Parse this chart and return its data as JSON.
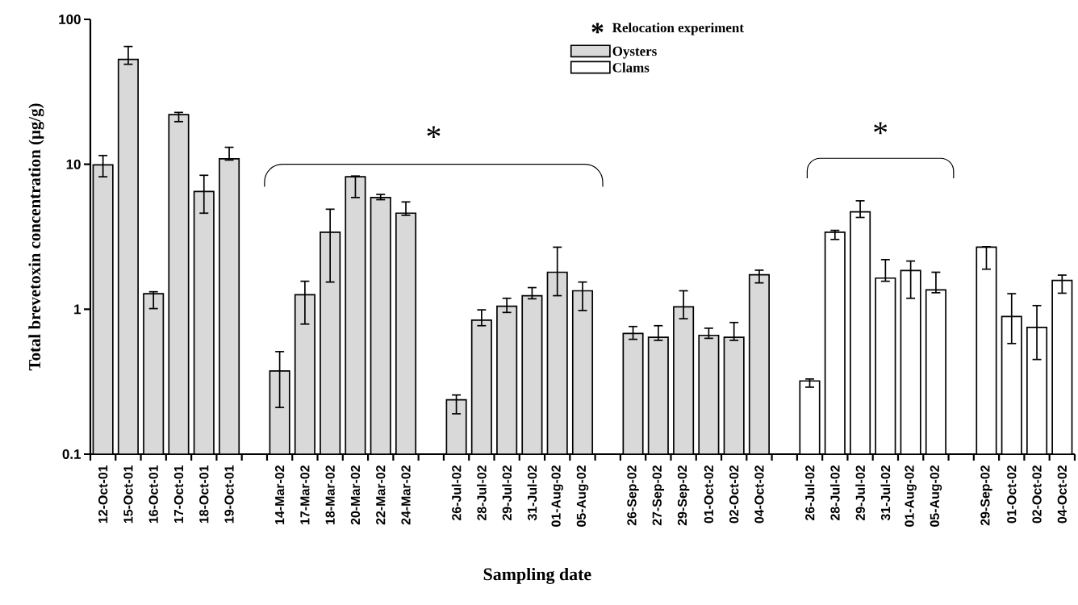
{
  "chart_data": {
    "type": "bar",
    "xlabel": "Sampling date",
    "ylabel": "Total brevetoxin concentration (μg/g)",
    "categories": [
      "12-Oct-01",
      "15-Oct-01",
      "16-Oct-01",
      "17-Oct-01",
      "18-Oct-01",
      "19-Oct-01",
      null,
      "14-Mar-02",
      "17-Mar-02",
      "18-Mar-02",
      "20-Mar-02",
      "22-Mar-02",
      "24-Mar-02",
      null,
      "26-Jul-02",
      "28-Jul-02",
      "29-Jul-02",
      "31-Jul-02",
      "01-Aug-02",
      "05-Aug-02",
      null,
      "26-Sep-02",
      "27-Sep-02",
      "29-Sep-02",
      "01-Oct-02",
      "02-Oct-02",
      "04-Oct-02",
      null,
      "26-Jul-02",
      "28-Jul-02",
      "29-Jul-02",
      "31-Jul-02",
      "01-Aug-02",
      "05-Aug-02",
      null,
      "29-Sep-02",
      "01-Oct-02",
      "02-Oct-02",
      "04-Oct-02"
    ],
    "series": [
      {
        "name": "Oysters",
        "color": "#d9d9d9",
        "values": [
          9.9,
          53,
          1.28,
          22,
          6.5,
          10.9,
          null,
          0.375,
          1.26,
          3.4,
          8.2,
          5.9,
          4.6,
          null,
          0.237,
          0.84,
          1.05,
          1.24,
          1.8,
          1.34,
          null,
          0.68,
          0.64,
          1.04,
          0.66,
          0.64,
          1.73,
          null,
          null,
          null,
          null,
          null,
          null,
          null,
          null,
          null,
          null,
          null,
          null
        ],
        "errors": [
          [
            8.2,
            11.5
          ],
          [
            49,
            65
          ],
          [
            1.01,
            1.32
          ],
          [
            19.7,
            22.8
          ],
          [
            4.6,
            8.4
          ],
          [
            10.7,
            13.1
          ],
          null,
          [
            0.21,
            0.51
          ],
          [
            0.79,
            1.56
          ],
          [
            1.54,
            4.9
          ],
          [
            5.9,
            8.3
          ],
          [
            5.7,
            6.2
          ],
          [
            4.45,
            5.5
          ],
          null,
          [
            0.19,
            0.256
          ],
          [
            0.77,
            0.99
          ],
          [
            0.95,
            1.19
          ],
          [
            1.18,
            1.41
          ],
          [
            1.24,
            2.68
          ],
          [
            0.98,
            1.54
          ],
          null,
          [
            0.62,
            0.76
          ],
          [
            0.61,
            0.77
          ],
          [
            0.86,
            1.34
          ],
          [
            0.63,
            0.74
          ],
          [
            0.61,
            0.81
          ],
          [
            1.52,
            1.86
          ],
          null,
          null,
          null,
          null,
          null,
          null,
          null,
          null,
          null,
          null,
          null,
          null
        ]
      },
      {
        "name": "Clams",
        "color": "#ffffff",
        "values": [
          null,
          null,
          null,
          null,
          null,
          null,
          null,
          null,
          null,
          null,
          null,
          null,
          null,
          null,
          null,
          null,
          null,
          null,
          null,
          null,
          null,
          null,
          null,
          null,
          null,
          null,
          null,
          null,
          0.32,
          3.4,
          4.7,
          1.64,
          1.85,
          1.36,
          null,
          2.68,
          0.89,
          0.75,
          1.58
        ],
        "errors": [
          null,
          null,
          null,
          null,
          null,
          null,
          null,
          null,
          null,
          null,
          null,
          null,
          null,
          null,
          null,
          null,
          null,
          null,
          null,
          null,
          null,
          null,
          null,
          null,
          null,
          null,
          null,
          null,
          [
            0.29,
            0.33
          ],
          [
            3.03,
            3.5
          ],
          [
            4.3,
            5.6
          ],
          [
            1.56,
            2.2
          ],
          [
            1.19,
            2.15
          ],
          [
            1.3,
            1.8
          ],
          null,
          [
            1.89,
            2.7
          ],
          [
            0.58,
            1.28
          ],
          [
            0.45,
            1.06
          ],
          [
            1.29,
            1.72
          ]
        ]
      }
    ],
    "log": true,
    "ylim": [
      0.1,
      100
    ],
    "yticks": [
      0.1,
      1,
      10,
      100
    ],
    "legend": "top",
    "annotations": [
      "*",
      "*",
      "*",
      "Relocation experiment"
    ]
  }
}
